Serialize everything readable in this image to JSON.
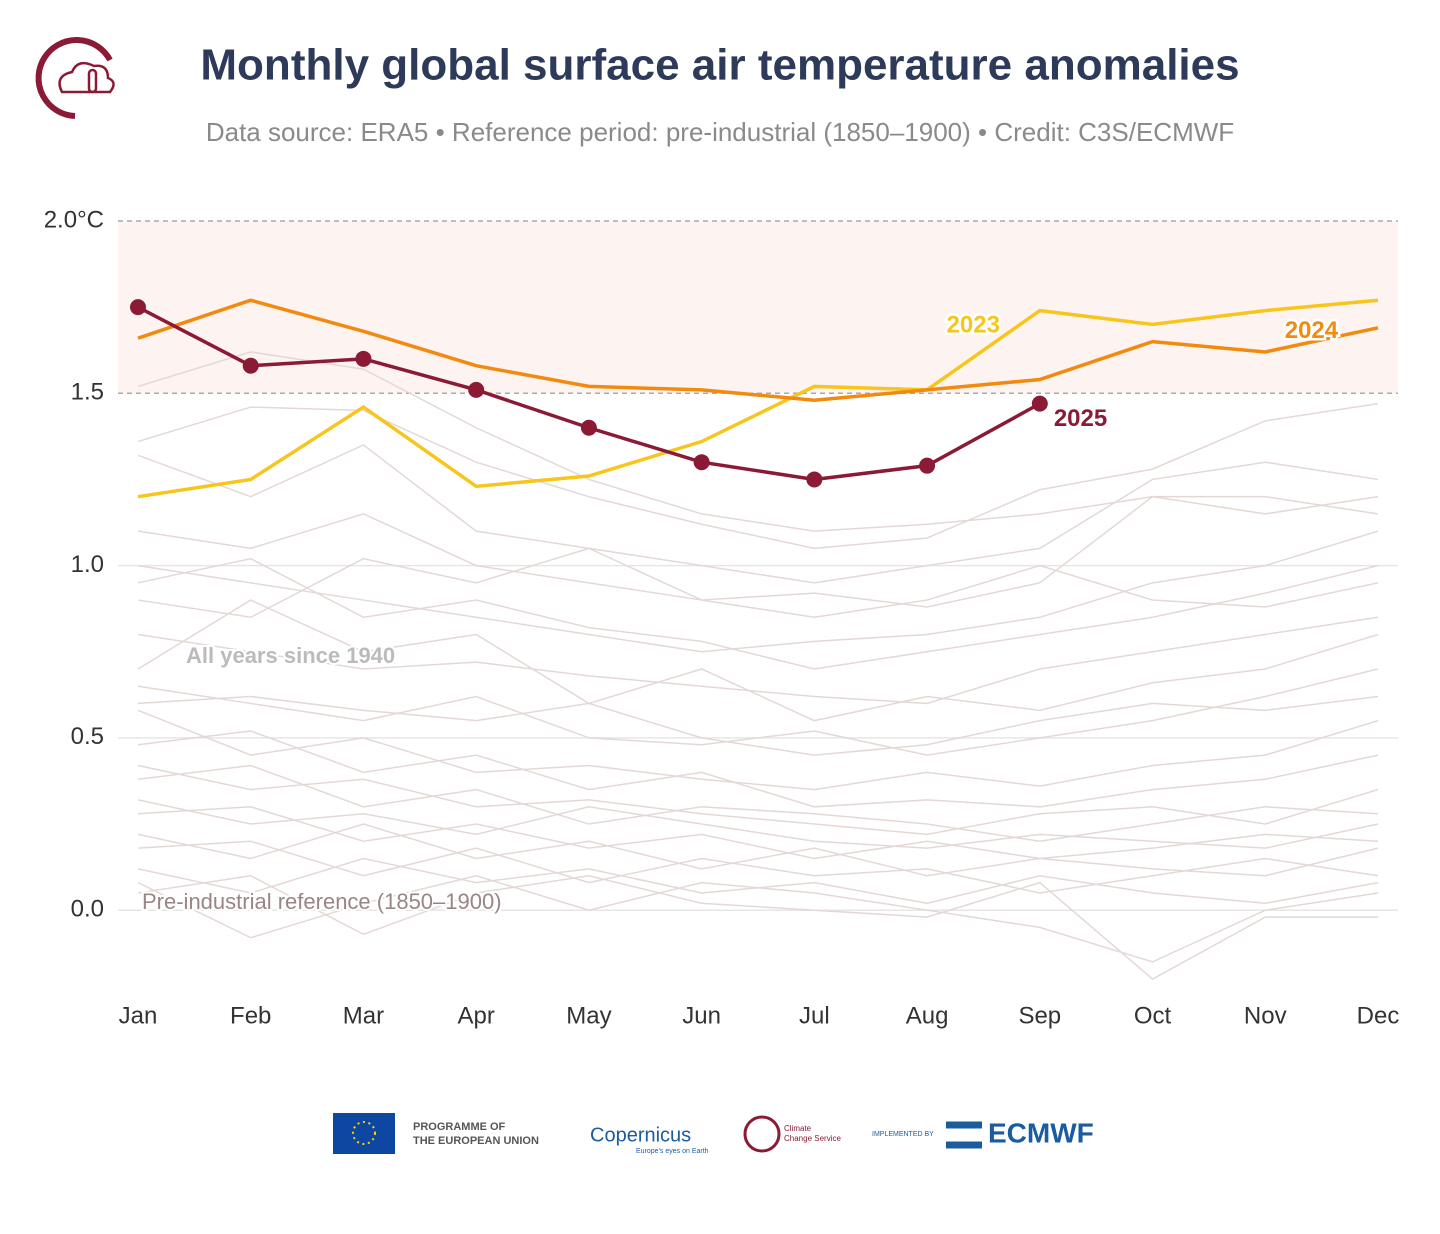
{
  "chart_data": {
    "type": "line",
    "title": "Monthly global surface air temperature anomalies",
    "subtitle": "Data source: ERA5 • Reference period: pre-industrial (1850–1900) • Credit: C3S/ECMWF",
    "categories": [
      "Jan",
      "Feb",
      "Mar",
      "Apr",
      "May",
      "Jun",
      "Jul",
      "Aug",
      "Sep",
      "Oct",
      "Nov",
      "Dec"
    ],
    "ylim": [
      -0.22,
      2.0
    ],
    "yticks": [
      {
        "value": 0,
        "label": "0.0"
      },
      0.5,
      {
        "value": 1,
        "label": "1.0"
      },
      1.5,
      {
        "value": 2,
        "label": "2.0°C"
      }
    ],
    "grid": true,
    "highlight_band": [
      1.5,
      2.0
    ],
    "annotations": [
      "All years since 1940",
      "Pre-industrial reference (1850–1900)"
    ],
    "background_color": "#e4d8d6",
    "background_series": [
      [
        1.52,
        1.62,
        1.57,
        1.4,
        1.25,
        1.15,
        1.1,
        1.12,
        1.15,
        1.2,
        1.2,
        1.15
      ],
      [
        1.36,
        1.46,
        1.45,
        1.3,
        1.2,
        1.12,
        1.05,
        1.08,
        1.22,
        1.28,
        1.42,
        1.47
      ],
      [
        1.32,
        1.2,
        1.35,
        1.1,
        1.05,
        1.0,
        0.95,
        1.0,
        1.05,
        1.25,
        1.3,
        1.25
      ],
      [
        1.1,
        1.05,
        1.15,
        1.0,
        0.95,
        0.9,
        0.92,
        0.88,
        0.95,
        1.2,
        1.15,
        1.2
      ],
      [
        1.0,
        0.95,
        0.9,
        0.85,
        0.8,
        0.75,
        0.78,
        0.8,
        0.85,
        0.95,
        1.0,
        1.1
      ],
      [
        0.9,
        0.85,
        1.02,
        0.95,
        1.05,
        0.9,
        0.85,
        0.9,
        1.0,
        0.9,
        0.88,
        0.95
      ],
      [
        0.8,
        0.75,
        0.7,
        0.72,
        0.68,
        0.65,
        0.62,
        0.6,
        0.7,
        0.75,
        0.8,
        0.85
      ],
      [
        0.7,
        0.9,
        0.75,
        0.8,
        0.6,
        0.7,
        0.55,
        0.62,
        0.58,
        0.66,
        0.7,
        0.8
      ],
      [
        0.65,
        0.6,
        0.55,
        0.62,
        0.5,
        0.48,
        0.52,
        0.45,
        0.5,
        0.55,
        0.62,
        0.7
      ],
      [
        0.58,
        0.45,
        0.5,
        0.4,
        0.42,
        0.38,
        0.35,
        0.4,
        0.36,
        0.42,
        0.45,
        0.55
      ],
      [
        0.48,
        0.52,
        0.4,
        0.45,
        0.35,
        0.4,
        0.3,
        0.32,
        0.3,
        0.35,
        0.38,
        0.45
      ],
      [
        0.42,
        0.35,
        0.38,
        0.3,
        0.32,
        0.28,
        0.25,
        0.22,
        0.28,
        0.3,
        0.25,
        0.35
      ],
      [
        0.38,
        0.42,
        0.3,
        0.35,
        0.25,
        0.3,
        0.28,
        0.25,
        0.2,
        0.25,
        0.3,
        0.28
      ],
      [
        0.32,
        0.25,
        0.28,
        0.22,
        0.3,
        0.25,
        0.2,
        0.18,
        0.22,
        0.2,
        0.18,
        0.25
      ],
      [
        0.28,
        0.3,
        0.2,
        0.25,
        0.18,
        0.22,
        0.15,
        0.2,
        0.15,
        0.18,
        0.22,
        0.2
      ],
      [
        0.22,
        0.15,
        0.25,
        0.15,
        0.2,
        0.12,
        0.18,
        0.1,
        0.15,
        0.12,
        0.1,
        0.18
      ],
      [
        0.18,
        0.2,
        0.1,
        0.18,
        0.08,
        0.15,
        0.1,
        0.12,
        0.05,
        0.1,
        0.15,
        0.1
      ],
      [
        0.12,
        0.05,
        0.15,
        0.08,
        0.12,
        0.05,
        0.08,
        0.02,
        0.1,
        0.05,
        0.02,
        0.08
      ],
      [
        0.08,
        -0.08,
        0.02,
        0.1,
        0.0,
        0.08,
        0.05,
        0.0,
        -0.05,
        -0.15,
        0.0,
        0.05
      ],
      [
        0.05,
        0.1,
        -0.07,
        0.05,
        0.1,
        0.02,
        0.0,
        -0.02,
        0.08,
        -0.2,
        -0.02,
        -0.02
      ],
      [
        0.6,
        0.62,
        0.58,
        0.55,
        0.6,
        0.5,
        0.45,
        0.48,
        0.55,
        0.6,
        0.58,
        0.62
      ],
      [
        0.95,
        1.02,
        0.85,
        0.9,
        0.82,
        0.78,
        0.7,
        0.75,
        0.8,
        0.85,
        0.92,
        1.0
      ]
    ],
    "series": [
      {
        "name": "2023",
        "color": "#f7c51c",
        "values": [
          1.2,
          1.25,
          1.46,
          1.23,
          1.26,
          1.36,
          1.52,
          1.51,
          1.74,
          1.7,
          1.74,
          1.77
        ]
      },
      {
        "name": "2024",
        "color": "#f28a10",
        "values": [
          1.66,
          1.77,
          1.68,
          1.58,
          1.52,
          1.51,
          1.48,
          1.51,
          1.54,
          1.65,
          1.62,
          1.69
        ]
      },
      {
        "name": "2025",
        "color": "#8b1a35",
        "markers": true,
        "values": [
          1.75,
          1.58,
          1.6,
          1.51,
          1.4,
          1.3,
          1.25,
          1.29,
          1.47,
          null,
          null,
          null
        ]
      }
    ]
  },
  "footer": {
    "eu": [
      "PROGRAMME OF",
      "THE EUROPEAN UNION"
    ],
    "copernicus": "Copernicus",
    "copernicus_tagline": "Europe's eyes on Earth",
    "c3s": [
      "Climate",
      "Change Service"
    ],
    "implemented_by": "IMPLEMENTED BY",
    "ecmwf": "ECMWF"
  }
}
